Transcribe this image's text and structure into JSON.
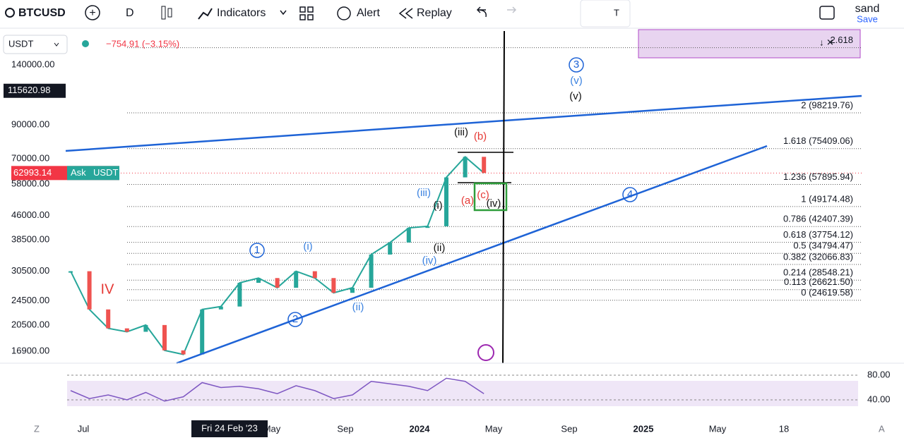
{
  "toolbar": {
    "symbol": "BTCUSD",
    "interval": "D",
    "indicators": "Indicators",
    "alert": "Alert",
    "replay": "Replay",
    "user": "sand",
    "save": "Save"
  },
  "legend": {
    "currency": "USDT",
    "change": "−754.91 (−3.15%)"
  },
  "price_axis": {
    "ticks": [
      {
        "value": 140000,
        "label": "140000.00"
      },
      {
        "value": 90000,
        "label": "90000.00"
      },
      {
        "value": 70000,
        "label": "70000.00"
      },
      {
        "value": 58000,
        "label": "58000.00"
      },
      {
        "value": 46000,
        "label": "46000.00"
      },
      {
        "value": 38500,
        "label": "38500.00"
      },
      {
        "value": 30500,
        "label": "30500.00"
      },
      {
        "value": 24500,
        "label": "24500.00"
      },
      {
        "value": 20500,
        "label": "20500.00"
      },
      {
        "value": 16900,
        "label": "16900.00"
      }
    ],
    "crosshair": {
      "value": 115620.98,
      "label": "115620.98"
    },
    "last_price": {
      "value": 62993.14,
      "label": "62993.14",
      "side": "Ask",
      "currency": "USDT"
    }
  },
  "fib_levels": [
    {
      "value": 159000,
      "label": "2.618"
    },
    {
      "value": 98219.76,
      "label": "2 (98219.76)"
    },
    {
      "value": 75409.06,
      "label": "1.618 (75409.06)"
    },
    {
      "value": 57895.94,
      "label": "1.236 (57895.94)"
    },
    {
      "value": 49174.48,
      "label": "1 (49174.48)"
    },
    {
      "value": 42407.39,
      "label": "0.786 (42407.39)"
    },
    {
      "value": 37754.12,
      "label": "0.618 (37754.12)"
    },
    {
      "value": 34794.47,
      "label": "0.5 (34794.47)"
    },
    {
      "value": 32066.83,
      "label": "0.382 (32066.83)"
    },
    {
      "value": 28548.21,
      "label": "0.214 (28548.21)"
    },
    {
      "value": 26621.5,
      "label": "0.113 (26621.50)"
    },
    {
      "value": 24619.58,
      "label": "0 (24619.58)"
    }
  ],
  "price_path": [
    30500,
    23000,
    20000,
    19500,
    20500,
    17000,
    16500,
    23000,
    23500,
    28000,
    29000,
    27000,
    30500,
    29000,
    26000,
    27000,
    34500,
    37700,
    42000,
    42500,
    61000,
    71000,
    63000
  ],
  "wave_labels": [
    {
      "text": "IV",
      "color": "#e53935"
    },
    {
      "text": "1",
      "color": "#1e63d6"
    },
    {
      "text": "(i)",
      "color": "#3b82e0"
    },
    {
      "text": "2",
      "color": "#1e63d6"
    },
    {
      "text": "(ii)",
      "color": "#3b82e0"
    },
    {
      "text": "(iii)",
      "color": "#3b82e0"
    },
    {
      "text": "(iv)",
      "color": "#3b82e0"
    },
    {
      "text": "(i)",
      "color": "#111"
    },
    {
      "text": "(ii)",
      "color": "#111"
    },
    {
      "text": "(iii)",
      "color": "#111"
    },
    {
      "text": "(b)",
      "color": "#e53935"
    },
    {
      "text": "(a)",
      "color": "#e53935"
    },
    {
      "text": "(c)",
      "color": "#e53935"
    },
    {
      "text": "(iv)",
      "color": "#111"
    },
    {
      "text": "3",
      "color": "#1e63d6"
    },
    {
      "text": "(v)",
      "color": "#3b82e0"
    },
    {
      "text": "(v)",
      "color": "#111"
    },
    {
      "text": "4",
      "color": "#1e63d6"
    }
  ],
  "rsi": {
    "ticks": [
      {
        "value": 80,
        "label": "80.00"
      },
      {
        "value": 40,
        "label": "40.00"
      }
    ],
    "values": [
      55,
      42,
      48,
      40,
      52,
      38,
      45,
      68,
      60,
      62,
      58,
      50,
      63,
      55,
      42,
      48,
      70,
      66,
      62,
      55,
      75,
      70,
      50
    ]
  },
  "time_axis": {
    "labels": [
      "Jul",
      "May",
      "Sep",
      "2024",
      "May",
      "Sep",
      "2025",
      "May",
      "18"
    ],
    "tooltip": "Fri 24 Feb '23"
  }
}
